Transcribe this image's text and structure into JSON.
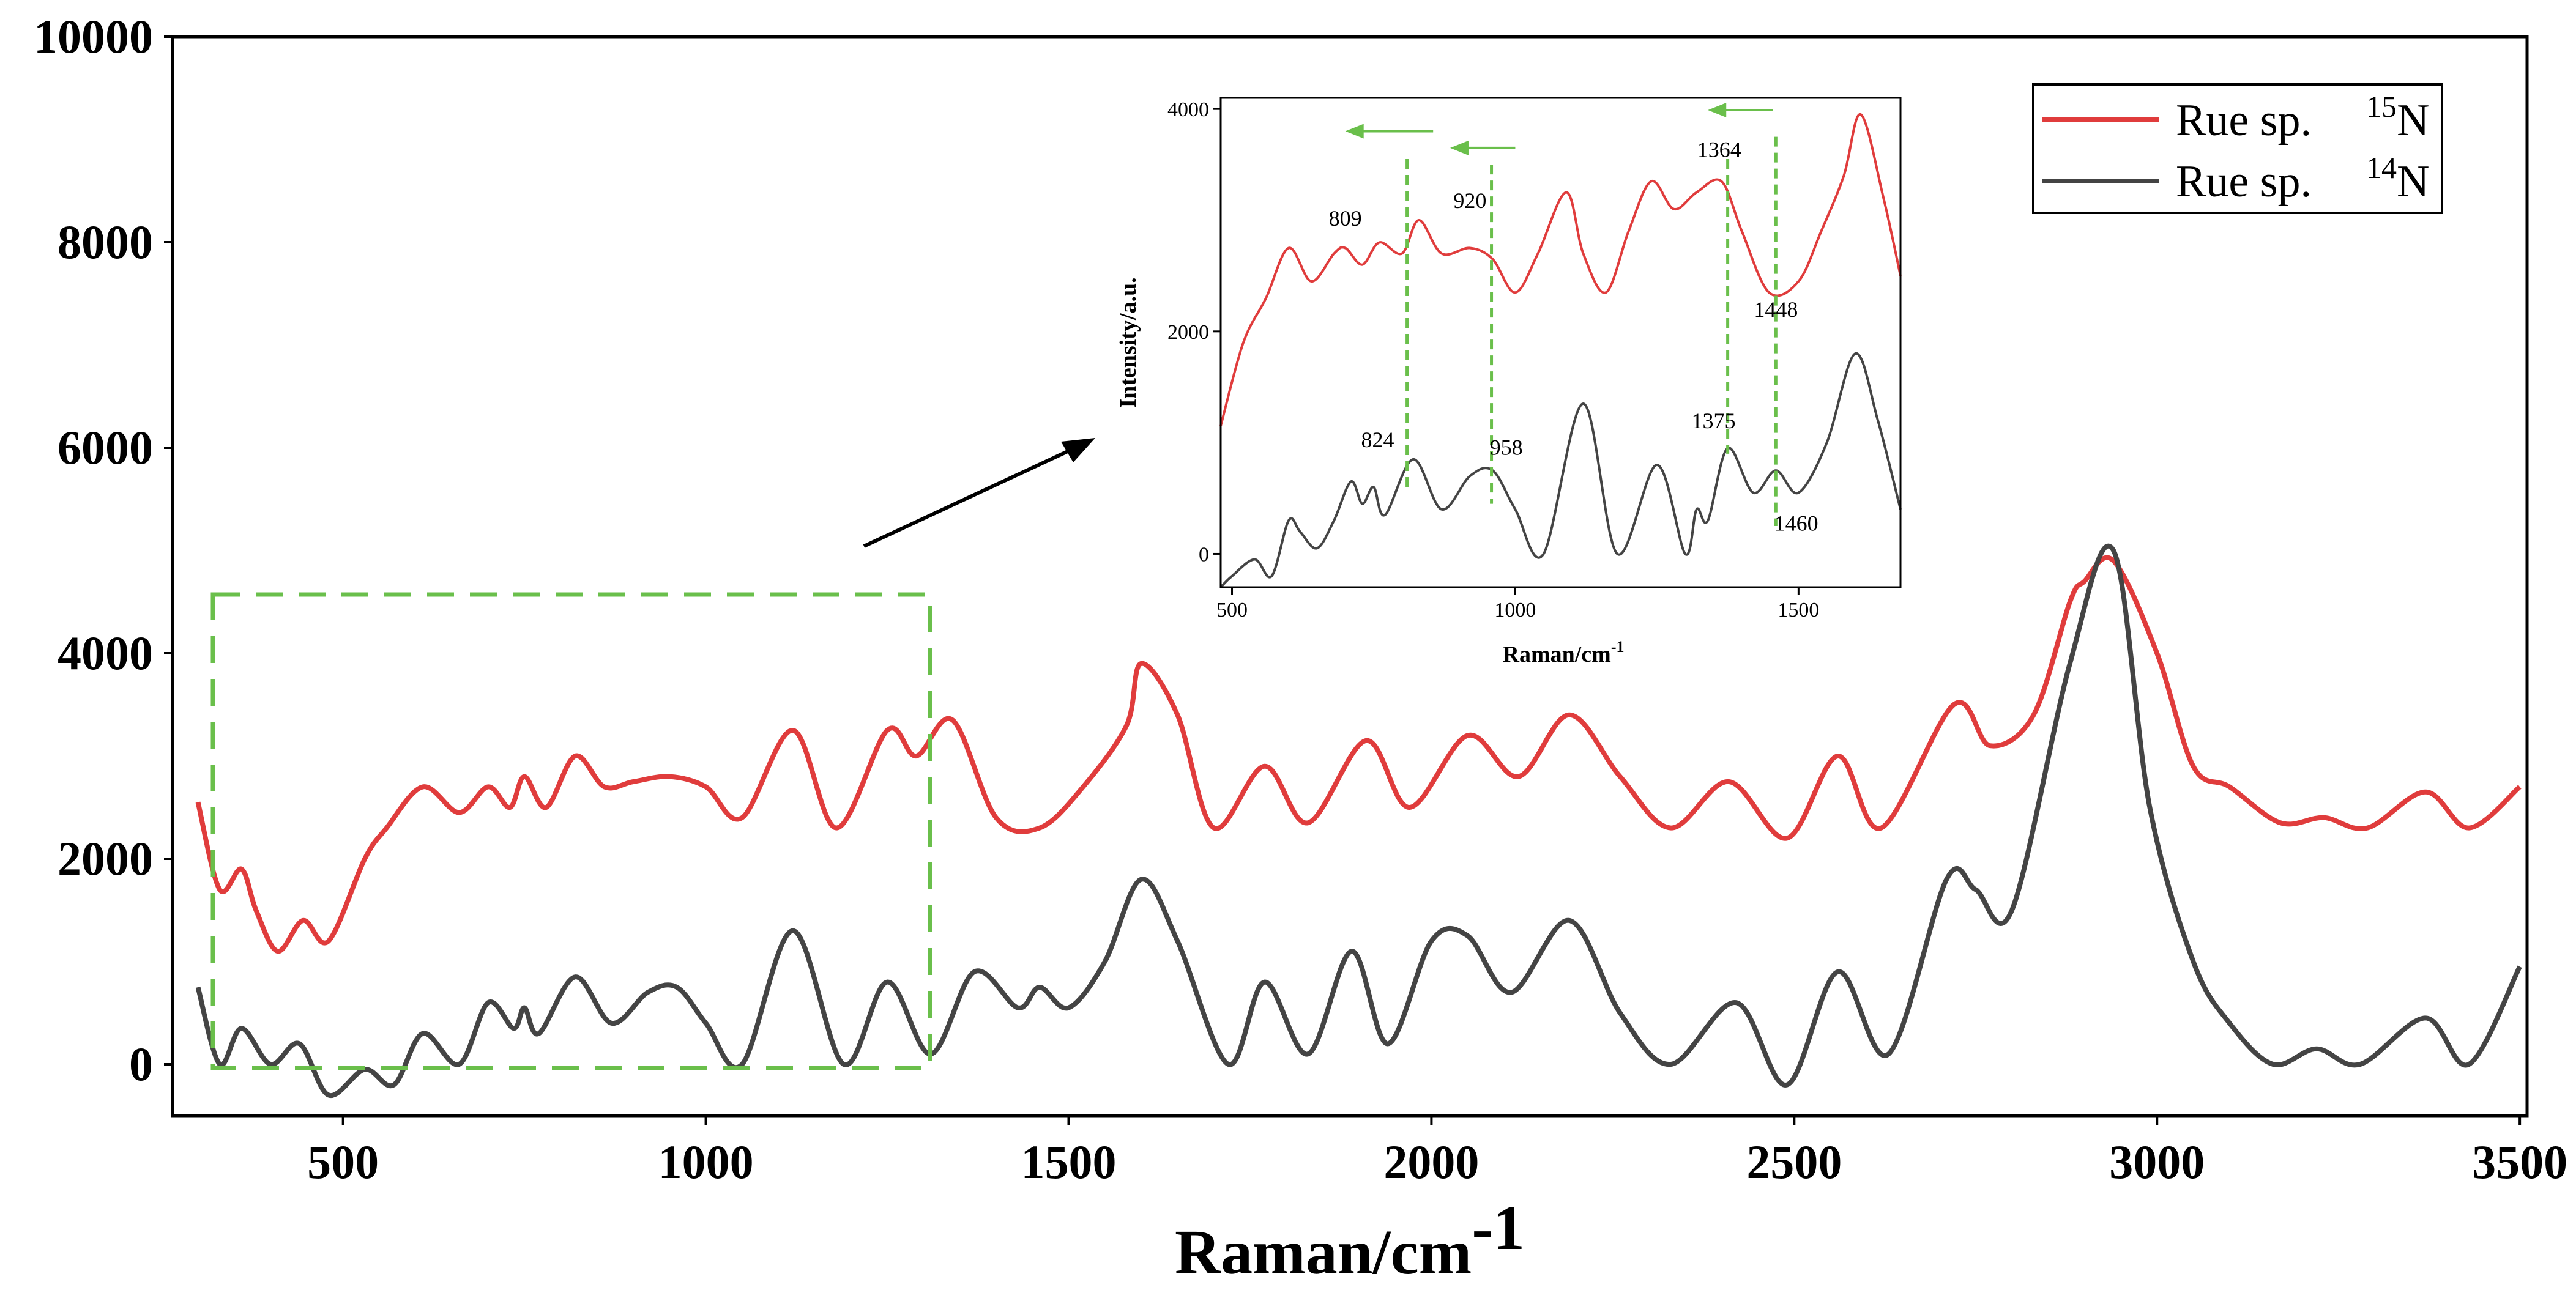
{
  "colors": {
    "n15": "#e03c3c",
    "n14": "#444444",
    "guide": "#6abf4b",
    "axis": "#000000"
  },
  "chart_data": [
    {
      "type": "line",
      "title": "",
      "xlabel": "Raman/cm",
      "xlabel_sup": "-1",
      "ylabel": "",
      "xlim": [
        265,
        3510
      ],
      "ylim": [
        -500,
        10000
      ],
      "xticks": [
        500,
        1000,
        1500,
        2000,
        2500,
        3000,
        3500
      ],
      "yticks": [
        0,
        2000,
        4000,
        6000,
        8000,
        10000
      ],
      "legend_position": "top-right",
      "series": [
        {
          "name": "Rue sp.",
          "isotope_mass": "15",
          "isotope_symbol": "N",
          "color": "#e03c3c",
          "x": [
            300,
            330,
            360,
            380,
            410,
            445,
            480,
            530,
            560,
            610,
            660,
            700,
            730,
            750,
            780,
            820,
            860,
            900,
            950,
            1000,
            1050,
            1120,
            1180,
            1250,
            1290,
            1340,
            1400,
            1460,
            1520,
            1580,
            1600,
            1650,
            1700,
            1770,
            1830,
            1910,
            1970,
            2050,
            2120,
            2190,
            2260,
            2330,
            2410,
            2490,
            2560,
            2620,
            2720,
            2770,
            2830,
            2880,
            2900,
            2940,
            3000,
            3050,
            3100,
            3170,
            3230,
            3290,
            3370,
            3430,
            3500
          ],
          "y": [
            2550,
            1700,
            1900,
            1500,
            1100,
            1400,
            1200,
            2000,
            2300,
            2700,
            2450,
            2700,
            2500,
            2800,
            2500,
            3000,
            2700,
            2750,
            2800,
            2700,
            2400,
            3250,
            2300,
            3250,
            3000,
            3350,
            2400,
            2300,
            2700,
            3300,
            3900,
            3400,
            2300,
            2900,
            2350,
            3150,
            2500,
            3200,
            2800,
            3400,
            2800,
            2300,
            2750,
            2200,
            3000,
            2300,
            3500,
            3100,
            3400,
            4500,
            4700,
            4900,
            4000,
            2900,
            2700,
            2350,
            2400,
            2300,
            2650,
            2300,
            2700
          ]
        },
        {
          "name": "Rue sp.",
          "isotope_mass": "14",
          "isotope_symbol": "N",
          "color": "#444444",
          "x": [
            300,
            330,
            360,
            400,
            440,
            480,
            530,
            570,
            610,
            660,
            700,
            735,
            750,
            770,
            820,
            870,
            920,
            960,
            1000,
            1050,
            1120,
            1190,
            1250,
            1310,
            1370,
            1430,
            1460,
            1500,
            1550,
            1600,
            1650,
            1720,
            1770,
            1830,
            1890,
            1940,
            2000,
            2050,
            2110,
            2190,
            2260,
            2330,
            2420,
            2490,
            2560,
            2630,
            2710,
            2750,
            2800,
            2880,
            2940,
            2990,
            3050,
            3100,
            3160,
            3220,
            3280,
            3370,
            3430,
            3500
          ],
          "y": [
            750,
            0,
            350,
            0,
            200,
            -300,
            -50,
            -200,
            300,
            0,
            600,
            350,
            550,
            300,
            850,
            400,
            700,
            750,
            400,
            0,
            1300,
            0,
            800,
            100,
            900,
            550,
            750,
            550,
            1000,
            1800,
            1200,
            0,
            800,
            100,
            1100,
            200,
            1200,
            1250,
            700,
            1400,
            500,
            0,
            600,
            -200,
            900,
            100,
            1800,
            1700,
            1500,
            3900,
            5000,
            2500,
            1000,
            400,
            0,
            150,
            0,
            450,
            0,
            950
          ]
        }
      ],
      "annotations": []
    },
    {
      "type": "line",
      "title": "",
      "xlabel": "Raman/cm",
      "xlabel_sup": "-1",
      "ylabel": "Intensity/a.u.",
      "xlim": [
        480,
        1680
      ],
      "ylim": [
        -300,
        4100
      ],
      "xticks": [
        500,
        1000,
        1500
      ],
      "yticks": [
        0,
        2000,
        4000
      ],
      "series": [
        {
          "name": "Rue sp. 15N (zoom)",
          "color": "#e03c3c",
          "x": [
            480,
            520,
            560,
            600,
            640,
            680,
            700,
            730,
            760,
            800,
            830,
            870,
            920,
            960,
            1000,
            1040,
            1090,
            1120,
            1160,
            1200,
            1240,
            1280,
            1320,
            1364,
            1400,
            1448,
            1500,
            1540,
            1580,
            1610,
            1650,
            1680
          ],
          "y": [
            1150,
            1900,
            2300,
            2750,
            2450,
            2700,
            2750,
            2600,
            2800,
            2700,
            3000,
            2700,
            2750,
            2650,
            2350,
            2700,
            3250,
            2700,
            2350,
            2900,
            3350,
            3100,
            3250,
            3350,
            2900,
            2350,
            2450,
            2900,
            3400,
            3950,
            3200,
            2500
          ]
        },
        {
          "name": "Rue sp. 14N (zoom)",
          "color": "#444444",
          "x": [
            480,
            500,
            540,
            570,
            600,
            620,
            650,
            680,
            710,
            730,
            750,
            770,
            820,
            870,
            920,
            960,
            1000,
            1050,
            1120,
            1180,
            1250,
            1300,
            1320,
            1340,
            1375,
            1420,
            1460,
            1500,
            1550,
            1600,
            1640,
            1680
          ],
          "y": [
            -300,
            -200,
            -50,
            -200,
            300,
            200,
            50,
            300,
            650,
            450,
            600,
            350,
            850,
            400,
            700,
            750,
            400,
            0,
            1350,
            0,
            800,
            0,
            400,
            300,
            950,
            550,
            750,
            550,
            1000,
            1800,
            1200,
            400
          ]
        }
      ],
      "annotations": [
        {
          "text": "809",
          "x": 700,
          "y": 2950
        },
        {
          "text": "920",
          "x": 920,
          "y": 3110
        },
        {
          "text": "1364",
          "x": 1360,
          "y": 3570
        },
        {
          "text": "1448",
          "x": 1460,
          "y": 2130
        },
        {
          "text": "824",
          "x": 757,
          "y": 960
        },
        {
          "text": "958",
          "x": 984,
          "y": 890
        },
        {
          "text": "1375",
          "x": 1350,
          "y": 1130
        },
        {
          "text": "1460",
          "x": 1496,
          "y": 210
        }
      ]
    }
  ]
}
